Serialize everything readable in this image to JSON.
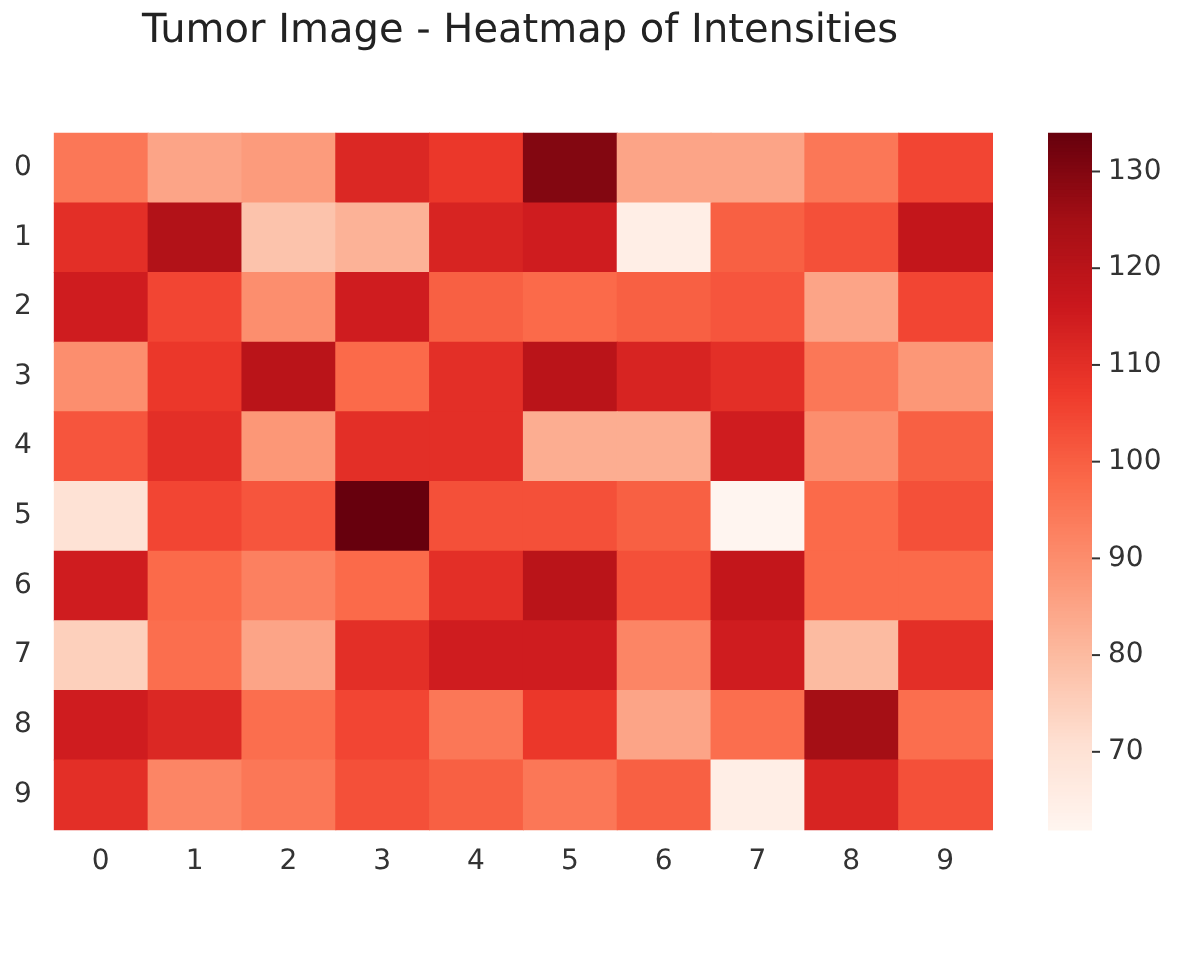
{
  "chart_data": {
    "type": "heatmap",
    "title": "Tumor Image - Heatmap of Intensities",
    "categories": [
      "0",
      "1",
      "2",
      "3",
      "4",
      "5",
      "6",
      "7",
      "8",
      "9"
    ],
    "y_categories": [
      "0",
      "1",
      "2",
      "3",
      "4",
      "5",
      "6",
      "7",
      "8",
      "9"
    ],
    "cells": [
      [
        95,
        85,
        87,
        112,
        108,
        130,
        85,
        85,
        95,
        105
      ],
      [
        110,
        122,
        78,
        82,
        113,
        115,
        65,
        100,
        103,
        118
      ],
      [
        115,
        105,
        90,
        115,
        100,
        98,
        100,
        102,
        85,
        105
      ],
      [
        90,
        108,
        120,
        98,
        110,
        120,
        113,
        110,
        95,
        88
      ],
      [
        102,
        110,
        88,
        110,
        110,
        83,
        83,
        115,
        90,
        100
      ],
      [
        70,
        105,
        102,
        134,
        103,
        103,
        100,
        62,
        98,
        103
      ],
      [
        115,
        98,
        93,
        98,
        110,
        120,
        103,
        118,
        98,
        98
      ],
      [
        75,
        97,
        85,
        110,
        115,
        115,
        92,
        115,
        80,
        110
      ],
      [
        115,
        112,
        97,
        105,
        95,
        108,
        85,
        97,
        125,
        97
      ],
      [
        110,
        92,
        95,
        103,
        100,
        95,
        100,
        65,
        113,
        103
      ]
    ],
    "clim": [
      62,
      134
    ],
    "cticks": [
      70,
      80,
      90,
      100,
      110,
      120,
      130
    ]
  }
}
